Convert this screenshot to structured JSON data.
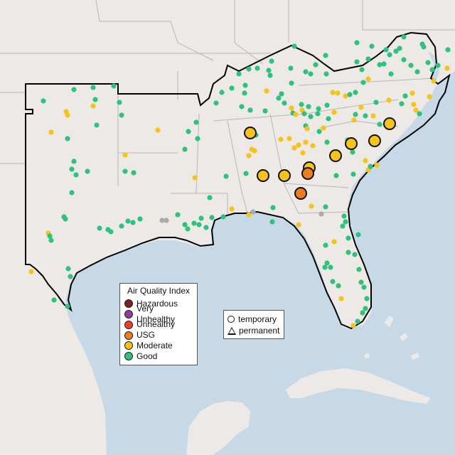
{
  "legend": {
    "title": "Air Quality Index",
    "categories": [
      {
        "label": "Hazardous",
        "color": "#7e1f23"
      },
      {
        "label": "Very Unhealthy",
        "color": "#8f3f97"
      },
      {
        "label": "Unhealthy",
        "color": "#e8412c"
      },
      {
        "label": "USG",
        "color": "#ee7d1f"
      },
      {
        "label": "Moderate",
        "color": "#f5c31a"
      },
      {
        "label": "Good",
        "color": "#2ec27e"
      }
    ]
  },
  "shape_legend": {
    "temporary": "temporary",
    "permanent": "permanent"
  },
  "colors": {
    "water": "#c7d8e6",
    "land": "#ece9e7",
    "state_border": "#b9b6b4",
    "region_outline": "#000000",
    "unknown_station": "#aaaaaa"
  }
}
